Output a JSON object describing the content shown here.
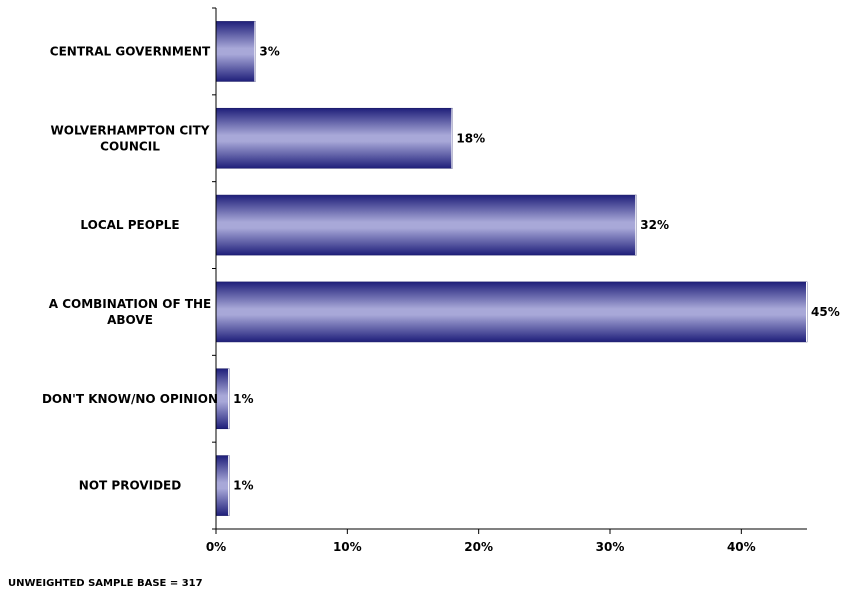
{
  "chart_data": {
    "type": "bar",
    "orientation": "horizontal",
    "categories": [
      "CENTRAL GOVERNMENT",
      "WOLVERHAMPTON CITY COUNCIL",
      "LOCAL PEOPLE",
      "A COMBINATION OF THE ABOVE",
      "DON'T KNOW/NO OPINION",
      "NOT PROVIDED"
    ],
    "values": [
      3,
      18,
      32,
      45,
      1,
      1
    ],
    "value_labels": [
      "3%",
      "18%",
      "32%",
      "45%",
      "1%",
      "1%"
    ],
    "xlim": [
      0,
      45
    ],
    "xticks": [
      0,
      10,
      20,
      30,
      40
    ],
    "xtick_labels": [
      "0%",
      "10%",
      "20%",
      "30%",
      "40%"
    ],
    "grid": false,
    "legend": "none",
    "bar_color_dark": "#1f1f7a",
    "bar_color_light": "#a8a8d8"
  },
  "footnote": "UNWEIGHTED SAMPLE BASE = 317"
}
